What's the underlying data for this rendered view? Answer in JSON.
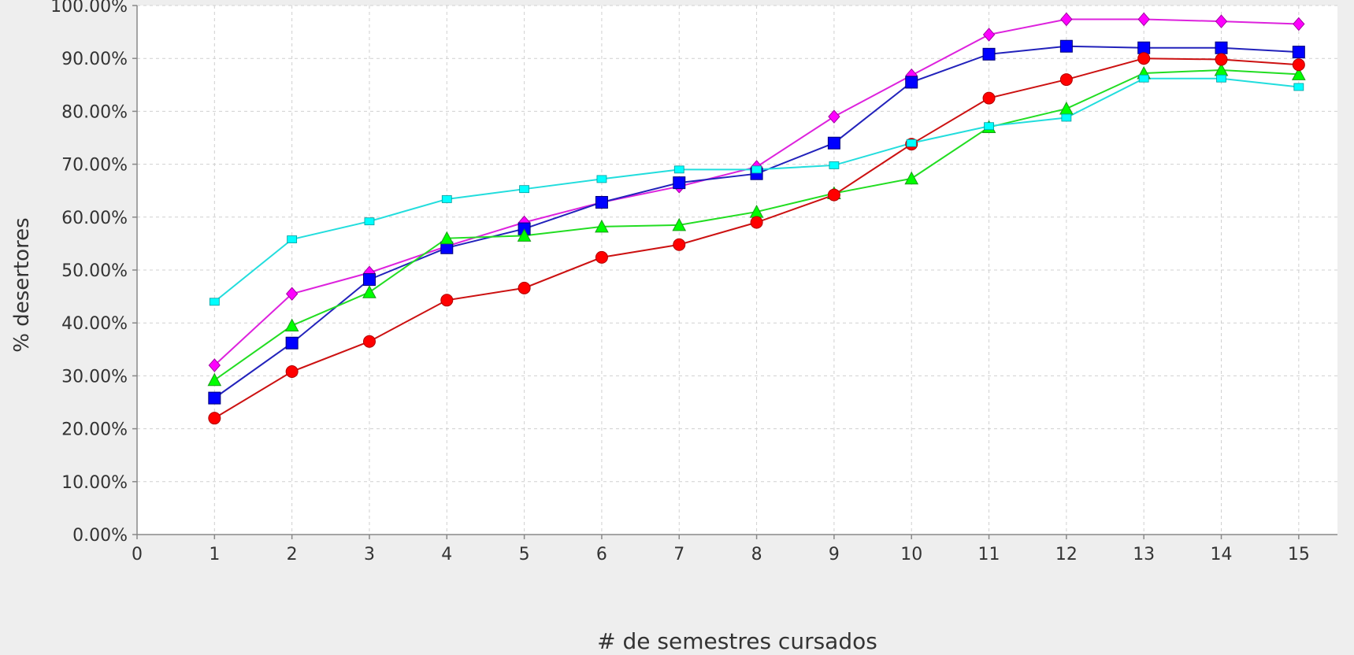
{
  "chart_data": {
    "type": "line",
    "title": "",
    "xlabel": "# de semestres cursados",
    "ylabel": "% desertores",
    "xlim": [
      0,
      15.5
    ],
    "ylim": [
      0,
      100
    ],
    "x_ticks": [
      0,
      1,
      2,
      3,
      4,
      5,
      6,
      7,
      8,
      9,
      10,
      11,
      12,
      13,
      14,
      15
    ],
    "y_ticks": [
      0,
      10,
      20,
      30,
      40,
      50,
      60,
      70,
      80,
      90,
      100
    ],
    "y_tick_labels": [
      "0.00%",
      "10.00%",
      "20.00%",
      "30.00%",
      "40.00%",
      "50.00%",
      "60.00%",
      "70.00%",
      "80.00%",
      "90.00%",
      "100.00%"
    ],
    "grid": true,
    "legend": "none",
    "x": [
      1,
      2,
      3,
      4,
      5,
      6,
      7,
      8,
      9,
      10,
      11,
      12,
      13,
      14,
      15
    ],
    "series": [
      {
        "color": "#ff00ff",
        "marker": "diamond",
        "values": [
          32.0,
          45.5,
          49.5,
          54.5,
          59.0,
          62.8,
          65.8,
          69.5,
          79.0,
          86.8,
          94.5,
          97.4,
          97.4,
          97.0,
          96.5
        ]
      },
      {
        "color": "#0000ff",
        "marker": "square",
        "values": [
          25.8,
          36.2,
          48.2,
          54.2,
          57.8,
          62.8,
          66.5,
          68.2,
          74.0,
          85.5,
          90.8,
          92.3,
          92.0,
          92.0,
          91.2
        ]
      },
      {
        "color": "#00ff00",
        "marker": "triangle",
        "values": [
          29.2,
          39.5,
          45.8,
          56.0,
          56.5,
          58.2,
          58.5,
          61.0,
          64.5,
          67.3,
          77.0,
          80.5,
          87.2,
          87.8,
          87.0
        ]
      },
      {
        "color": "#ff0000",
        "marker": "circle",
        "values": [
          22.0,
          30.8,
          36.5,
          44.3,
          46.6,
          52.4,
          54.8,
          59.0,
          64.2,
          73.8,
          82.5,
          86.0,
          90.0,
          89.8,
          88.8
        ]
      },
      {
        "color": "#00ffff",
        "marker": "small-square",
        "values": [
          44.0,
          55.8,
          59.2,
          63.4,
          65.3,
          67.2,
          69.0,
          69.0,
          69.8,
          74.0,
          77.2,
          78.8,
          86.2,
          86.2,
          84.6
        ]
      }
    ]
  }
}
